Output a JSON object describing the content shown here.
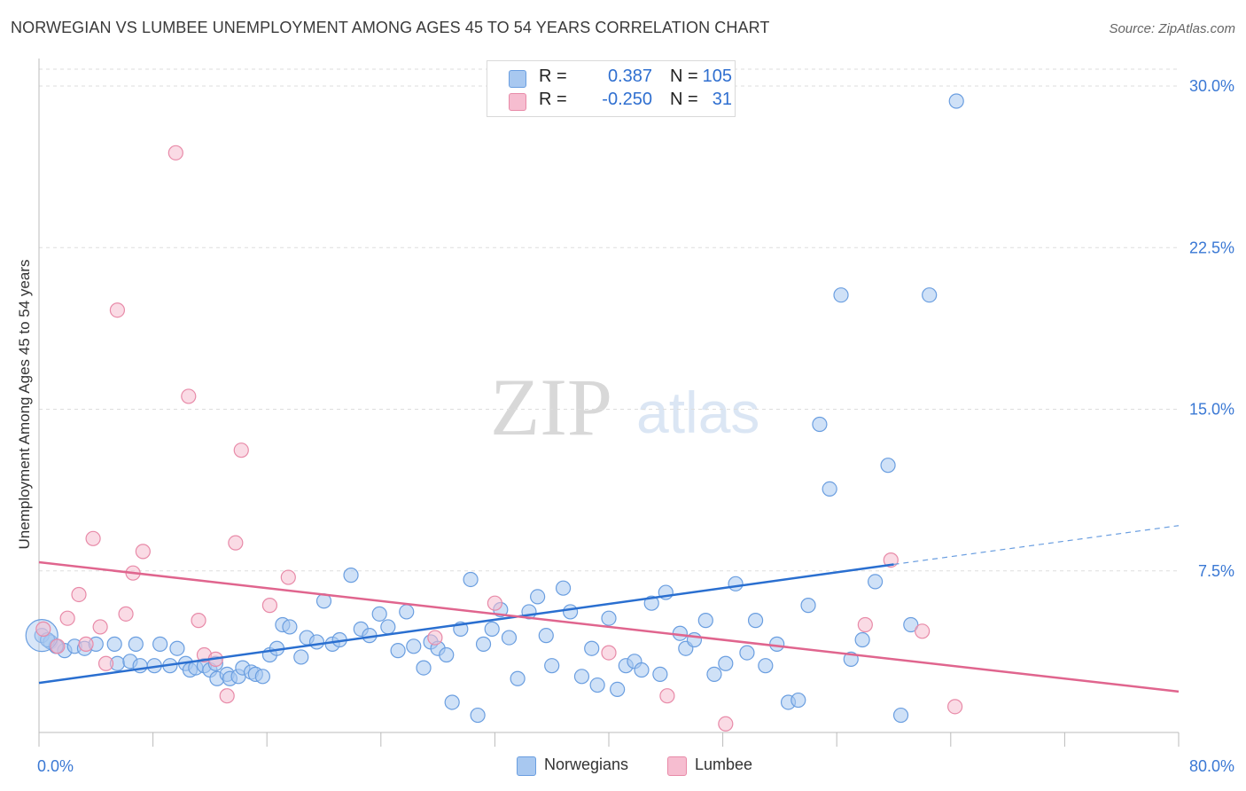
{
  "title": "NORWEGIAN VS LUMBEE UNEMPLOYMENT AMONG AGES 45 TO 54 YEARS CORRELATION CHART",
  "source": "Source: ZipAtlas.com",
  "watermark": {
    "zip": "ZIP",
    "atlas": "atlas"
  },
  "legend_top": {
    "rows": [
      {
        "r_label": "R =",
        "r_value": "0.387",
        "n_label": "N =",
        "n_value": "105",
        "color": "#a8c8f0",
        "stroke": "#6a9ee0"
      },
      {
        "r_label": "R =",
        "r_value": "-0.250",
        "n_label": "N =",
        "n_value": "31",
        "color": "#f6bdd0",
        "stroke": "#e88aa8"
      }
    ]
  },
  "legend_bottom": [
    {
      "label": "Norwegians",
      "color": "#a8c8f0",
      "stroke": "#6a9ee0"
    },
    {
      "label": "Lumbee",
      "color": "#f6bdd0",
      "stroke": "#e88aa8"
    }
  ],
  "chart_data": {
    "type": "scatter",
    "title": "NORWEGIAN VS LUMBEE UNEMPLOYMENT AMONG AGES 45 TO 54 YEARS CORRELATION CHART",
    "xlabel": "",
    "ylabel": "Unemployment Among Ages 45 to 54 years",
    "xlim": [
      0,
      80
    ],
    "ylim": [
      0,
      30
    ],
    "x_tick_labels": [
      "0.0%",
      "80.0%"
    ],
    "y_ticks": [
      7.5,
      15.0,
      22.5,
      30.0
    ],
    "y_tick_labels": [
      "7.5%",
      "15.0%",
      "22.5%",
      "30.0%"
    ],
    "grid": "horizontal dashed",
    "legend_placement": "top-center and bottom",
    "series": [
      {
        "name": "Norwegians",
        "color": "#6a9ee0",
        "fill": "#a8c8f0",
        "r": 0.387,
        "n": 105,
        "trend": {
          "x0": 0,
          "y0": 2.3,
          "x1": 60,
          "y1": 7.8,
          "dash_to_x": 80,
          "dash_to_y": 9.6
        },
        "points": [
          [
            0.2,
            4.5
          ],
          [
            0.8,
            4.2
          ],
          [
            1.2,
            4.0
          ],
          [
            1.8,
            3.8
          ],
          [
            2.5,
            4.0
          ],
          [
            3.2,
            3.9
          ],
          [
            4.0,
            4.1
          ],
          [
            5.3,
            4.1
          ],
          [
            5.5,
            3.2
          ],
          [
            6.4,
            3.3
          ],
          [
            6.8,
            4.1
          ],
          [
            7.1,
            3.1
          ],
          [
            8.1,
            3.1
          ],
          [
            8.5,
            4.1
          ],
          [
            9.2,
            3.1
          ],
          [
            9.7,
            3.9
          ],
          [
            10.3,
            3.2
          ],
          [
            10.6,
            2.9
          ],
          [
            11.0,
            3.0
          ],
          [
            11.6,
            3.1
          ],
          [
            12.0,
            2.9
          ],
          [
            12.4,
            3.2
          ],
          [
            12.5,
            2.5
          ],
          [
            13.2,
            2.7
          ],
          [
            13.4,
            2.5
          ],
          [
            14.0,
            2.6
          ],
          [
            14.3,
            3.0
          ],
          [
            14.9,
            2.8
          ],
          [
            15.2,
            2.7
          ],
          [
            15.7,
            2.6
          ],
          [
            16.2,
            3.6
          ],
          [
            16.7,
            3.9
          ],
          [
            17.1,
            5.0
          ],
          [
            17.6,
            4.9
          ],
          [
            18.4,
            3.5
          ],
          [
            18.8,
            4.4
          ],
          [
            19.5,
            4.2
          ],
          [
            20.0,
            6.1
          ],
          [
            20.6,
            4.1
          ],
          [
            21.1,
            4.3
          ],
          [
            21.9,
            7.3
          ],
          [
            22.6,
            4.8
          ],
          [
            23.2,
            4.5
          ],
          [
            23.9,
            5.5
          ],
          [
            24.5,
            4.9
          ],
          [
            25.2,
            3.8
          ],
          [
            25.8,
            5.6
          ],
          [
            26.3,
            4.0
          ],
          [
            27.0,
            3.0
          ],
          [
            27.5,
            4.2
          ],
          [
            28.0,
            3.9
          ],
          [
            28.6,
            3.6
          ],
          [
            29.0,
            1.4
          ],
          [
            29.6,
            4.8
          ],
          [
            30.3,
            7.1
          ],
          [
            30.8,
            0.8
          ],
          [
            31.2,
            4.1
          ],
          [
            31.8,
            4.8
          ],
          [
            32.4,
            5.7
          ],
          [
            33.0,
            4.4
          ],
          [
            33.6,
            2.5
          ],
          [
            34.4,
            5.6
          ],
          [
            35.0,
            6.3
          ],
          [
            35.6,
            4.5
          ],
          [
            36.0,
            3.1
          ],
          [
            36.8,
            6.7
          ],
          [
            37.3,
            5.6
          ],
          [
            38.1,
            2.6
          ],
          [
            38.8,
            3.9
          ],
          [
            39.2,
            2.2
          ],
          [
            40.0,
            5.3
          ],
          [
            40.6,
            2.0
          ],
          [
            41.2,
            3.1
          ],
          [
            41.8,
            3.3
          ],
          [
            42.3,
            2.9
          ],
          [
            43.0,
            6.0
          ],
          [
            43.6,
            2.7
          ],
          [
            44.0,
            6.5
          ],
          [
            45.0,
            4.6
          ],
          [
            45.4,
            3.9
          ],
          [
            46.0,
            4.3
          ],
          [
            46.8,
            5.2
          ],
          [
            47.4,
            2.7
          ],
          [
            48.2,
            3.2
          ],
          [
            48.9,
            6.9
          ],
          [
            49.7,
            3.7
          ],
          [
            50.3,
            5.2
          ],
          [
            51.0,
            3.1
          ],
          [
            51.8,
            4.1
          ],
          [
            52.6,
            1.4
          ],
          [
            53.3,
            1.5
          ],
          [
            54.0,
            5.9
          ],
          [
            54.8,
            14.3
          ],
          [
            55.5,
            11.3
          ],
          [
            56.3,
            20.3
          ],
          [
            57.0,
            3.4
          ],
          [
            57.8,
            4.3
          ],
          [
            58.7,
            7.0
          ],
          [
            59.6,
            12.4
          ],
          [
            60.5,
            0.8
          ],
          [
            61.2,
            5.0
          ],
          [
            62.5,
            20.3
          ],
          [
            64.4,
            29.3
          ],
          [
            1.2,
            4.0
          ],
          [
            0.6,
            4.3
          ]
        ]
      },
      {
        "name": "Lumbee",
        "color": "#e88aa8",
        "fill": "#f6bdd0",
        "r": -0.25,
        "n": 31,
        "trend": {
          "x0": 0,
          "y0": 7.9,
          "x1": 80,
          "y1": 1.9
        },
        "points": [
          [
            0.3,
            4.8
          ],
          [
            1.3,
            4.0
          ],
          [
            2.0,
            5.3
          ],
          [
            2.8,
            6.4
          ],
          [
            3.3,
            4.1
          ],
          [
            3.8,
            9.0
          ],
          [
            4.3,
            4.9
          ],
          [
            4.7,
            3.2
          ],
          [
            5.5,
            19.6
          ],
          [
            6.1,
            5.5
          ],
          [
            6.6,
            7.4
          ],
          [
            7.3,
            8.4
          ],
          [
            9.6,
            26.9
          ],
          [
            10.5,
            15.6
          ],
          [
            11.2,
            5.2
          ],
          [
            11.6,
            3.6
          ],
          [
            12.4,
            3.4
          ],
          [
            13.2,
            1.7
          ],
          [
            13.8,
            8.8
          ],
          [
            14.2,
            13.1
          ],
          [
            16.2,
            5.9
          ],
          [
            17.5,
            7.2
          ],
          [
            27.8,
            4.4
          ],
          [
            32.0,
            6.0
          ],
          [
            40.0,
            3.7
          ],
          [
            44.1,
            1.7
          ],
          [
            48.2,
            0.4
          ],
          [
            58.0,
            5.0
          ],
          [
            59.8,
            8.0
          ],
          [
            62.0,
            4.7
          ],
          [
            64.3,
            1.2
          ]
        ]
      }
    ]
  }
}
